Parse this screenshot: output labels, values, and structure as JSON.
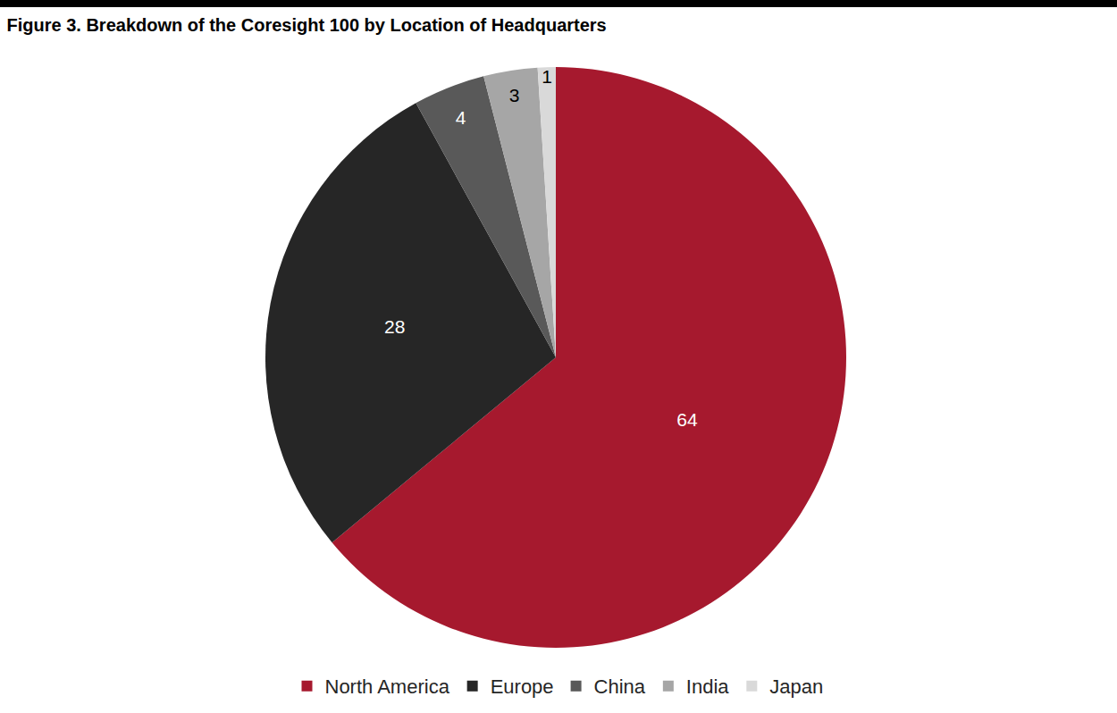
{
  "chart_data": {
    "type": "pie",
    "title": "Figure 3. Breakdown of the Coresight 100 by Location of Headquarters",
    "categories": [
      "North America",
      "Europe",
      "China",
      "India",
      "Japan"
    ],
    "values": [
      64,
      28,
      4,
      3,
      1
    ],
    "colors": [
      "#A6192E",
      "#262626",
      "#595959",
      "#A6A6A6",
      "#D9D9D9"
    ],
    "data_labels": true,
    "legend": "bottom"
  }
}
